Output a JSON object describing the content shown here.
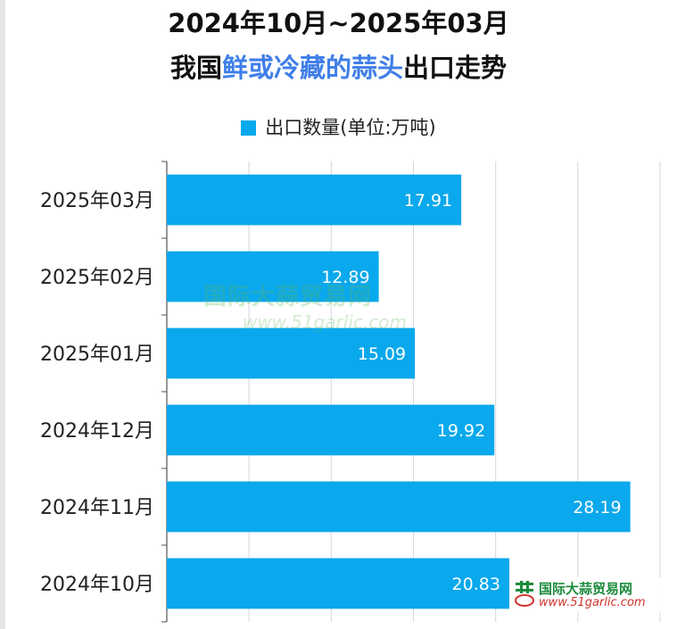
{
  "title_line1": "2024年10月~2025年03月",
  "title_line2": {
    "pre": "我国",
    "highlight": "鲜或冷藏的蒜头",
    "post": "出口走势"
  },
  "colors": {
    "bar": "#0aa8ec",
    "highlight": "#3f7ee8",
    "grid": "#d6d6dc"
  },
  "chart_data": {
    "type": "bar",
    "orientation": "horizontal",
    "categories": [
      "2025年03月",
      "2025年02月",
      "2025年01月",
      "2024年12月",
      "2024年11月",
      "2024年10月"
    ],
    "series": [
      {
        "name": "出口数量(单位:万吨)",
        "values": [
          17.91,
          12.89,
          15.09,
          19.92,
          28.19,
          20.83
        ]
      }
    ],
    "xlim": [
      0,
      30
    ],
    "grid": true,
    "legend_position": "top-center"
  },
  "watermark": {
    "cn": "国际大蒜贸易网",
    "url": "www.51garlic.com"
  },
  "logo": {
    "cn": "国际大蒜贸易网",
    "url": "www.51garlic.com"
  }
}
